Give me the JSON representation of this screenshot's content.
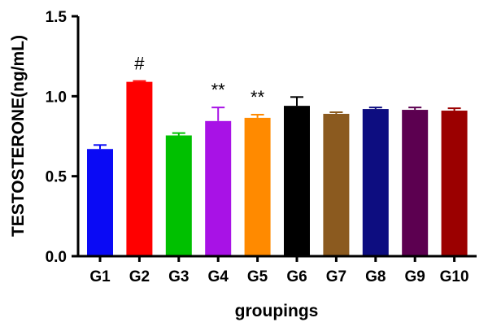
{
  "chart_data": {
    "type": "bar",
    "title": "",
    "xlabel": "groupings",
    "ylabel": "TESTOSTERONE(ng/mL)",
    "ylim": [
      0.0,
      1.5
    ],
    "yticks": [
      "0.0",
      "0.5",
      "1.0",
      "1.5"
    ],
    "grid": false,
    "categories": [
      "G1",
      "G2",
      "G3",
      "G4",
      "G5",
      "G6",
      "G7",
      "G8",
      "G9",
      "G10"
    ],
    "values": [
      0.67,
      1.09,
      0.755,
      0.845,
      0.865,
      0.94,
      0.89,
      0.92,
      0.915,
      0.91
    ],
    "errors": [
      0.025,
      0.005,
      0.015,
      0.085,
      0.02,
      0.055,
      0.01,
      0.01,
      0.015,
      0.015
    ],
    "colors": [
      "#0a0af5",
      "#ff0000",
      "#00c000",
      "#a812e6",
      "#ff8a00",
      "#000000",
      "#8b5a1f",
      "#0d0d80",
      "#5c0050",
      "#9b0000"
    ],
    "annotations": [
      {
        "category": "G2",
        "text": "#"
      },
      {
        "category": "G4",
        "text": "**"
      },
      {
        "category": "G5",
        "text": "**"
      }
    ]
  }
}
